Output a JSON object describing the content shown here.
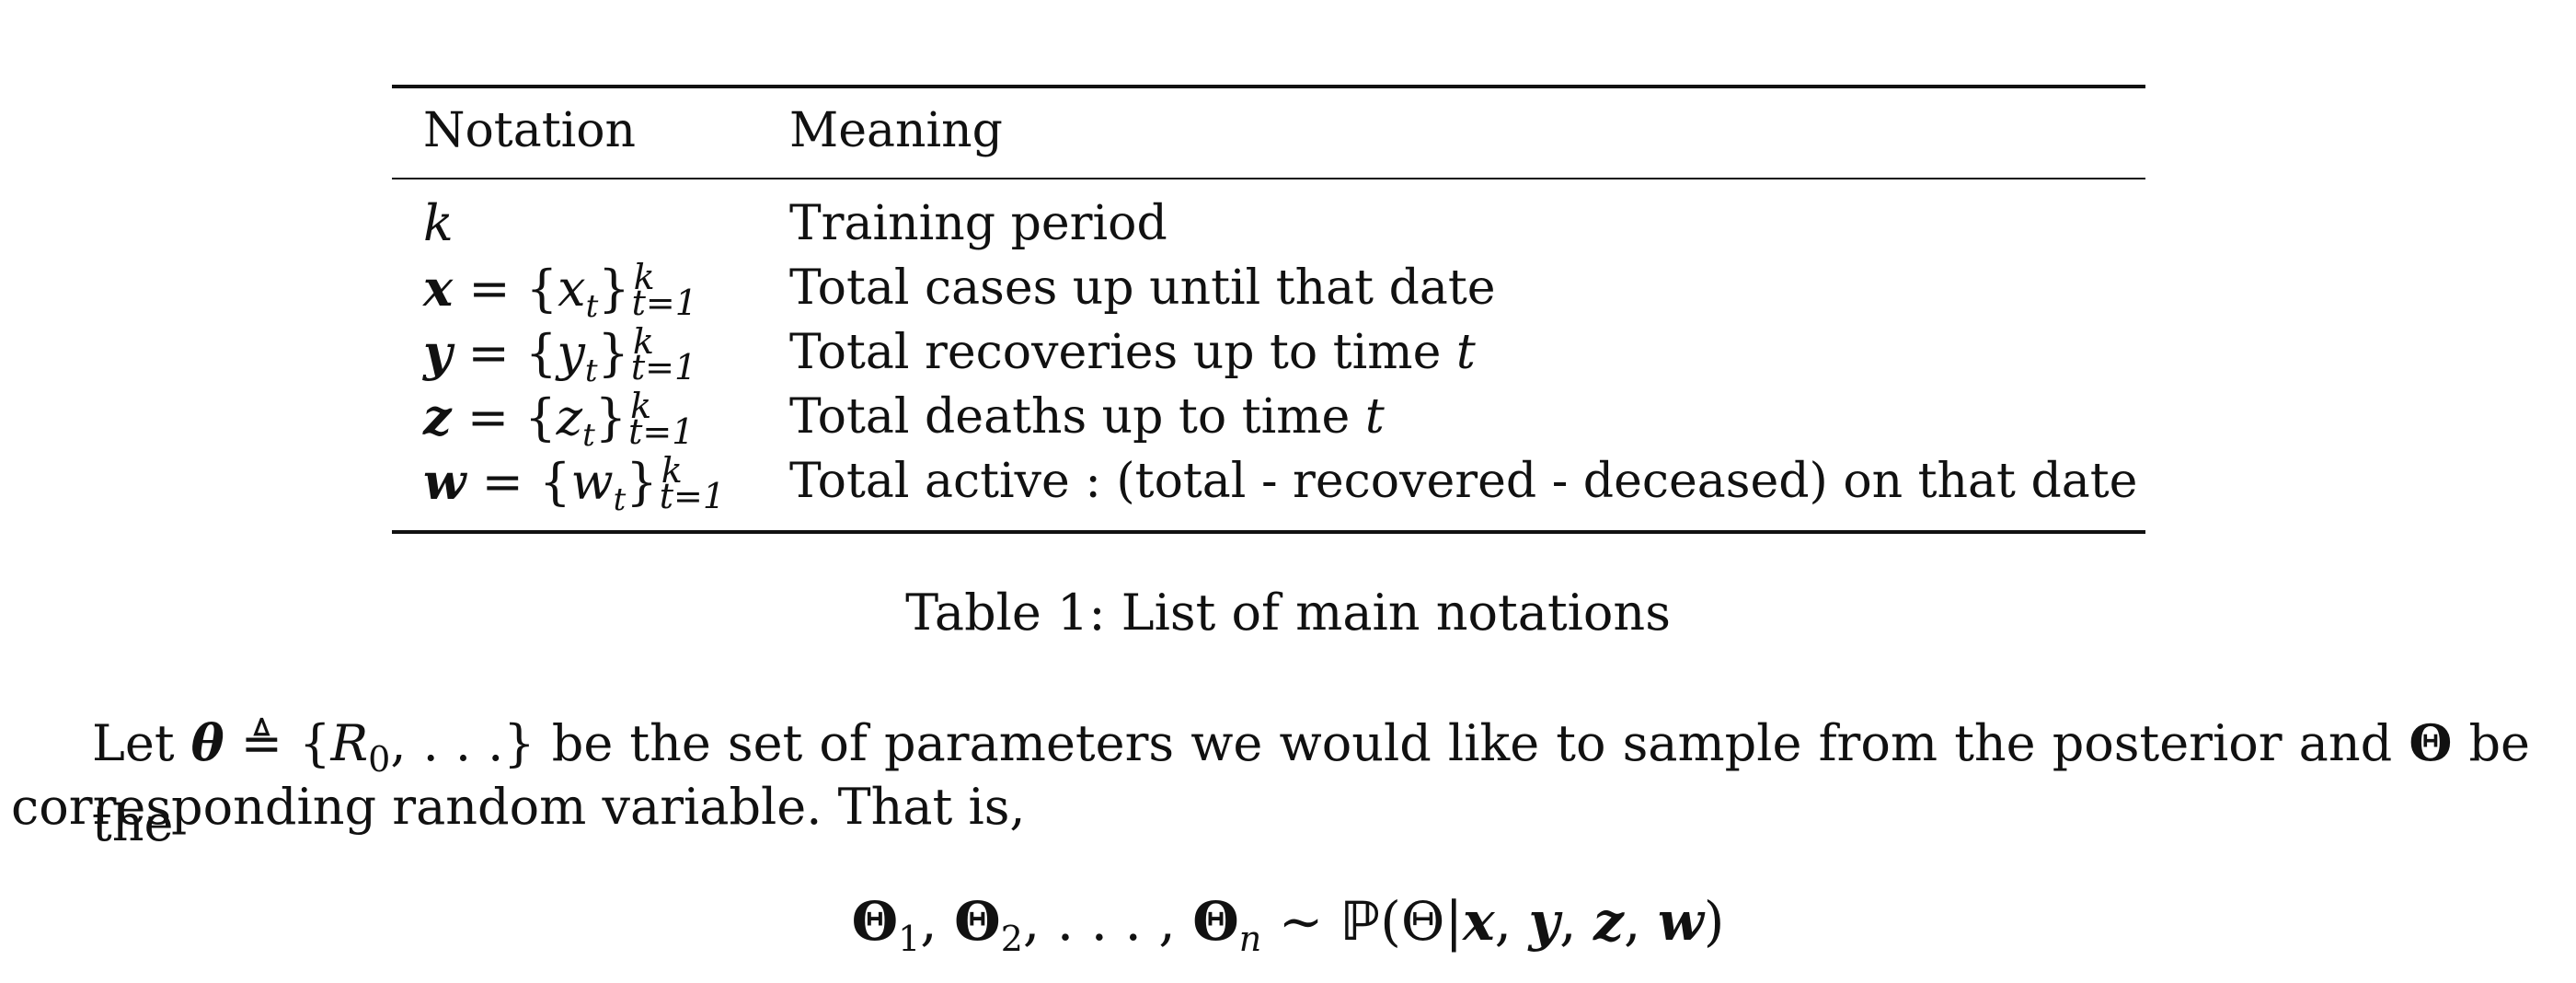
{
  "table": {
    "headers": {
      "notation": "Notation",
      "meaning": "Meaning"
    },
    "rows": [
      {
        "symbol": "k",
        "meaning": "Training period"
      },
      {
        "symbol": "x",
        "element": "x",
        "meaning": "Total cases up until that date"
      },
      {
        "symbol": "y",
        "element": "y",
        "meaning_text": "Total recoveries up to time ",
        "meaning_var": "t"
      },
      {
        "symbol": "z",
        "element": "z",
        "meaning_text": "Total deaths up to time ",
        "meaning_var": "t"
      },
      {
        "symbol": "w",
        "element": "w",
        "meaning": "Total active : (total - recovered - deceased) on that date"
      }
    ],
    "set_notation": {
      "equals": " = ",
      "sub": "t",
      "upper": "k",
      "lower": "t=1"
    },
    "caption": "Table 1: List of main notations"
  },
  "paragraph": {
    "lead": "Let ",
    "theta": "θ",
    "defeq": "≜",
    "set_open": " {",
    "R": "R",
    "R_sub": "0",
    "set_rest": ", . . .}",
    "middle": " be the set of parameters we would like to sample from the posterior and ",
    "Theta": "Θ",
    "tail": " be the",
    "line2": "corresponding random variable. That is,"
  },
  "equation": {
    "Theta": "Θ",
    "sub1": "1",
    "sub2": "2",
    "subn": "n",
    "ellipsis": ", . . . , ",
    "sep": ", ",
    "dist": " ∼ ",
    "prob": "ℙ",
    "args": "(Θ|",
    "vars": [
      "x",
      "y",
      "z",
      "w"
    ],
    "close": ")"
  }
}
